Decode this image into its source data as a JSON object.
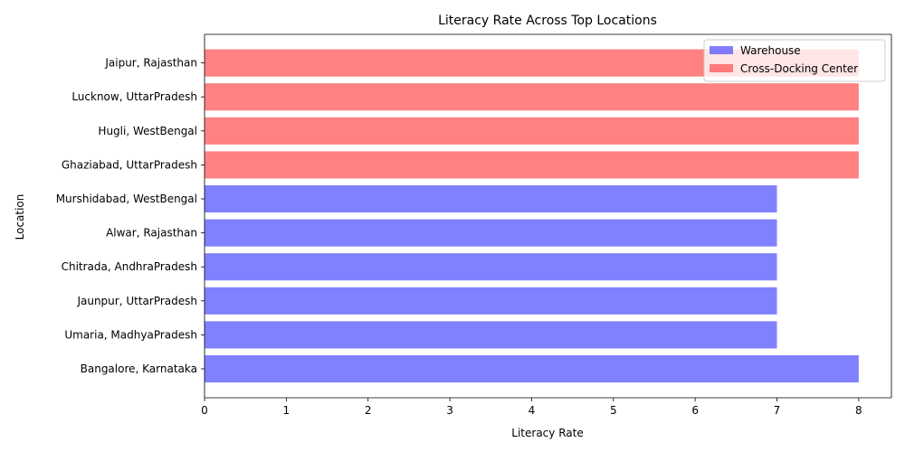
{
  "chart_data": {
    "type": "bar",
    "orientation": "horizontal",
    "title": "Literacy Rate Across Top Locations",
    "xlabel": "Literacy Rate",
    "ylabel": "Location",
    "xlim": [
      0,
      8.4
    ],
    "xticks": [
      0,
      1,
      2,
      3,
      4,
      5,
      6,
      7,
      8
    ],
    "grid": false,
    "legend_position": "top-right",
    "colors": {
      "Warehouse": "#4c4cff",
      "Cross-Docking Center": "#ff4c4c"
    },
    "series": [
      {
        "name": "Warehouse",
        "color": "#4c4cff"
      },
      {
        "name": "Cross-Docking Center",
        "color": "#ff4c4c"
      }
    ],
    "categories": [
      "Bangalore, Karnataka",
      "Umaria, MadhyaPradesh",
      "Jaunpur, UttarPradesh",
      "Chitrada, AndhraPradesh",
      "Alwar, Rajasthan",
      "Murshidabad, WestBengal",
      "Ghaziabad, UttarPradesh",
      "Hugli, WestBengal",
      "Lucknow, UttarPradesh",
      "Jaipur, Rajasthan"
    ],
    "values": [
      8,
      7,
      7,
      7,
      7,
      7,
      8,
      8,
      8,
      8
    ],
    "bar_series": [
      "Warehouse",
      "Warehouse",
      "Warehouse",
      "Warehouse",
      "Warehouse",
      "Warehouse",
      "Cross-Docking Center",
      "Cross-Docking Center",
      "Cross-Docking Center",
      "Cross-Docking Center"
    ]
  }
}
